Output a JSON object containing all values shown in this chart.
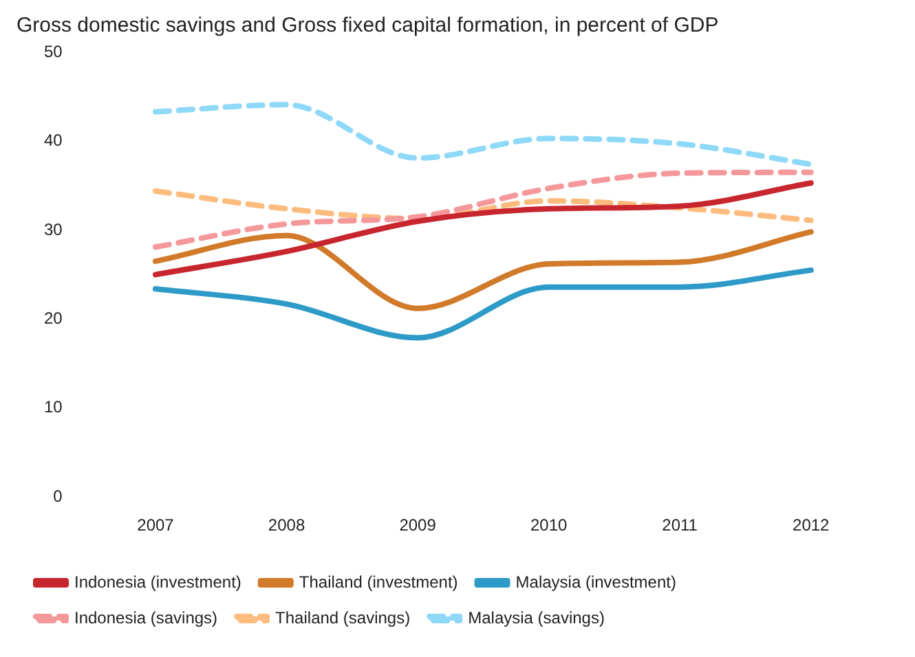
{
  "chart_data": {
    "type": "line",
    "title": "Gross domestic savings and Gross fixed capital formation, in percent of GDP",
    "categories": [
      "2007",
      "2008",
      "2009",
      "2010",
      "2011",
      "2012"
    ],
    "series": [
      {
        "name": "Indonesia (investment)",
        "color": "#c8262e",
        "line_style": "solid",
        "values": [
          25.0,
          27.6,
          31.0,
          32.4,
          32.7,
          35.3
        ]
      },
      {
        "name": "Thailand (investment)",
        "color": "#d17a2a",
        "line_style": "solid",
        "values": [
          26.5,
          29.4,
          21.2,
          26.2,
          26.4,
          29.8
        ]
      },
      {
        "name": "Malaysia (investment)",
        "color": "#2e9ac8",
        "line_style": "solid",
        "values": [
          23.4,
          21.7,
          17.9,
          23.6,
          23.6,
          25.5
        ]
      },
      {
        "name": "Indonesia (savings)",
        "color": "#f4989a",
        "line_style": "dashed",
        "values": [
          28.1,
          30.7,
          31.5,
          34.7,
          36.4,
          36.5
        ]
      },
      {
        "name": "Thailand (savings)",
        "color": "#fdbb7d",
        "line_style": "dashed",
        "values": [
          34.4,
          32.4,
          31.3,
          33.3,
          32.5,
          31.1
        ]
      },
      {
        "name": "Malaysia (savings)",
        "color": "#8ed8f8",
        "line_style": "dashed",
        "values": [
          43.3,
          44.1,
          38.1,
          40.3,
          39.7,
          37.4
        ]
      }
    ],
    "ylim": [
      0,
      50
    ],
    "yticks": [
      0,
      10,
      20,
      30,
      40,
      50
    ],
    "grid": false,
    "legend": "bottom",
    "marker": "none"
  }
}
